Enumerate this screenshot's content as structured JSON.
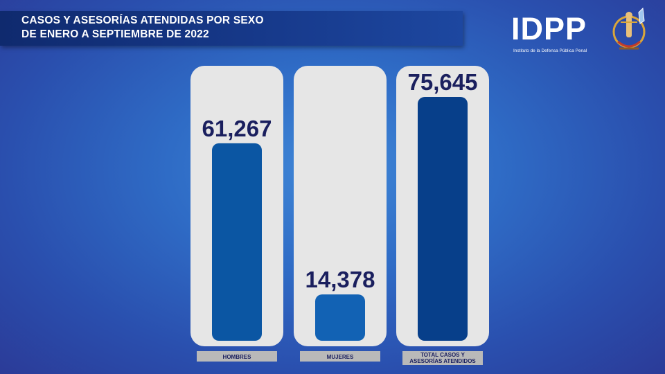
{
  "title": {
    "line1": "CASOS Y ASESORÍAS ATENDIDAS POR SEXO",
    "line2": "DE ENERO A SEPTIEMBRE DE 2022"
  },
  "logo": {
    "name": "IDPP",
    "subtitle": "Instituto de la Defensa Pública Penal",
    "emblem_icon": "justice-emblem-icon"
  },
  "colors": {
    "background": "#2f6cc6",
    "panel": "#e6e6e6",
    "bar_hombres": "#0b56a3",
    "bar_mujeres": "#1262b4",
    "bar_total": "#073f8a",
    "value_text": "#1a1f5e",
    "category_tab": "#b9b9b9"
  },
  "chart_data": {
    "type": "bar",
    "categories": [
      "HOMBRES",
      "MUJERES",
      "TOTAL CASOS Y ASESORÍAS ATENDIDOS"
    ],
    "category_label_lines": [
      [
        "HOMBRES"
      ],
      [
        "MUJERES"
      ],
      [
        "TOTAL CASOS Y",
        "ASESORÍAS ATENDIDOS"
      ]
    ],
    "values": [
      61267,
      14378,
      75645
    ],
    "value_labels": [
      "61,267",
      "14,378",
      "75,645"
    ],
    "ylim": [
      0,
      75645
    ],
    "grid": false,
    "legend": "none"
  }
}
